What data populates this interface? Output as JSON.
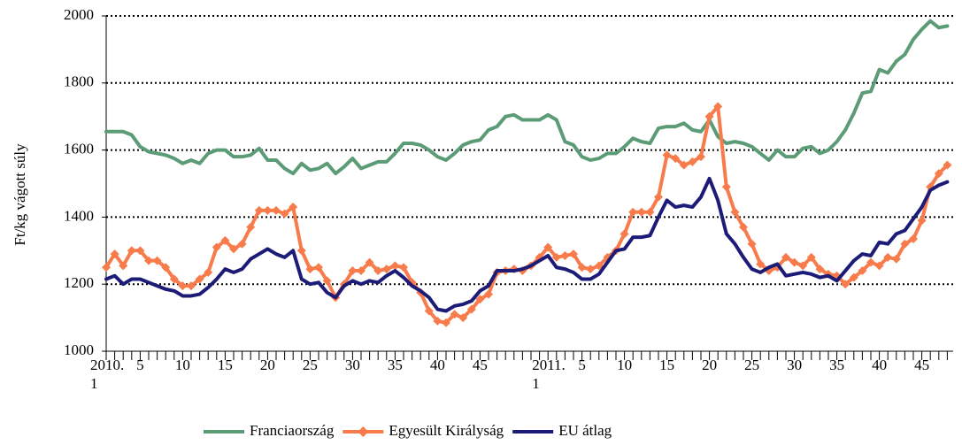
{
  "chart_data": {
    "type": "line",
    "y_axis_label": "Ft/kg vágott súly",
    "categories": [
      "2010.\n1",
      null,
      null,
      null,
      "5",
      null,
      null,
      null,
      null,
      "10",
      null,
      null,
      null,
      null,
      "15",
      null,
      null,
      null,
      null,
      "20",
      null,
      null,
      null,
      null,
      "25",
      null,
      null,
      null,
      null,
      "30",
      null,
      null,
      null,
      null,
      "35",
      null,
      null,
      null,
      null,
      "40",
      null,
      null,
      null,
      null,
      "45",
      null,
      null,
      null,
      null,
      null,
      null,
      null,
      "2011.\n1",
      null,
      null,
      null,
      "5",
      null,
      null,
      null,
      null,
      "10",
      null,
      null,
      null,
      null,
      "15",
      null,
      null,
      null,
      null,
      "20",
      null,
      null,
      null,
      null,
      "25",
      null,
      null,
      null,
      null,
      "30",
      null,
      null,
      null,
      null,
      "35",
      null,
      null,
      null,
      null,
      "40",
      null,
      null,
      null,
      null,
      "45",
      null,
      null,
      null
    ],
    "series": [
      {
        "name": "Franciaország",
        "color": "#5b9b76",
        "marker": "none",
        "values": [
          1655,
          1655,
          1655,
          1645,
          1610,
          1595,
          1590,
          1585,
          1575,
          1560,
          1570,
          1560,
          1590,
          1600,
          1600,
          1580,
          1580,
          1585,
          1605,
          1570,
          1570,
          1545,
          1530,
          1560,
          1540,
          1545,
          1560,
          1530,
          1550,
          1575,
          1545,
          1555,
          1565,
          1565,
          1590,
          1620,
          1620,
          1615,
          1600,
          1580,
          1570,
          1590,
          1615,
          1625,
          1630,
          1660,
          1670,
          1700,
          1705,
          1690,
          1690,
          1690,
          1705,
          1690,
          1625,
          1615,
          1580,
          1570,
          1575,
          1590,
          1590,
          1610,
          1635,
          1625,
          1620,
          1665,
          1670,
          1670,
          1680,
          1660,
          1655,
          1690,
          1640,
          1620,
          1625,
          1620,
          1610,
          1590,
          1570,
          1600,
          1580,
          1580,
          1605,
          1610,
          1590,
          1600,
          1625,
          1660,
          1710,
          1770,
          1775,
          1840,
          1830,
          1865,
          1885,
          1930,
          1960,
          1985,
          1965,
          1970
        ]
      },
      {
        "name": "Egyesült Királyság",
        "color": "#f77b4b",
        "marker": "diamond",
        "values": [
          1250,
          1290,
          1255,
          1300,
          1300,
          1270,
          1270,
          1250,
          1215,
          1195,
          1195,
          1215,
          1235,
          1310,
          1330,
          1305,
          1320,
          1370,
          1420,
          1420,
          1420,
          1410,
          1430,
          1300,
          1245,
          1250,
          1210,
          1160,
          1200,
          1240,
          1240,
          1265,
          1240,
          1245,
          1255,
          1250,
          1205,
          1175,
          1120,
          1090,
          1085,
          1110,
          1100,
          1125,
          1155,
          1170,
          1235,
          1240,
          1245,
          1240,
          1255,
          1280,
          1310,
          1280,
          1285,
          1290,
          1250,
          1245,
          1255,
          1280,
          1300,
          1350,
          1415,
          1415,
          1415,
          1460,
          1585,
          1575,
          1555,
          1565,
          1580,
          1700,
          1730,
          1490,
          1415,
          1370,
          1320,
          1260,
          1240,
          1250,
          1280,
          1265,
          1255,
          1280,
          1245,
          1230,
          1225,
          1200,
          1220,
          1240,
          1265,
          1255,
          1280,
          1275,
          1320,
          1335,
          1390,
          1490,
          1530,
          1555
        ]
      },
      {
        "name": "EU átlag",
        "color": "#1c1c78",
        "marker": "none",
        "values": [
          1215,
          1225,
          1200,
          1215,
          1215,
          1205,
          1195,
          1185,
          1180,
          1165,
          1165,
          1170,
          1190,
          1215,
          1245,
          1235,
          1245,
          1275,
          1290,
          1305,
          1290,
          1280,
          1300,
          1215,
          1200,
          1205,
          1175,
          1160,
          1195,
          1210,
          1200,
          1210,
          1205,
          1225,
          1240,
          1220,
          1195,
          1180,
          1160,
          1125,
          1120,
          1135,
          1140,
          1150,
          1180,
          1195,
          1240,
          1240,
          1240,
          1245,
          1255,
          1270,
          1285,
          1250,
          1245,
          1235,
          1215,
          1215,
          1230,
          1265,
          1300,
          1305,
          1340,
          1340,
          1345,
          1400,
          1450,
          1430,
          1435,
          1430,
          1460,
          1515,
          1450,
          1350,
          1320,
          1280,
          1245,
          1235,
          1250,
          1260,
          1225,
          1230,
          1235,
          1230,
          1220,
          1225,
          1210,
          1240,
          1270,
          1290,
          1285,
          1325,
          1320,
          1350,
          1360,
          1395,
          1430,
          1480,
          1495,
          1505
        ]
      }
    ],
    "ylim": [
      1000,
      2000
    ],
    "yticks": [
      1000,
      1200,
      1400,
      1600,
      1800,
      2000
    ],
    "grid": true,
    "legend": "bottom"
  }
}
